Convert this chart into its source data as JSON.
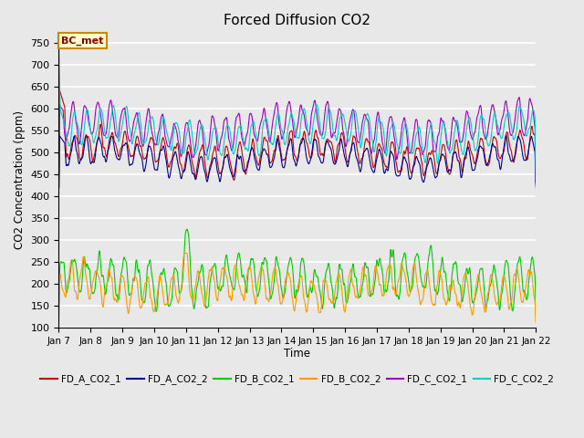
{
  "title": "Forced Diffusion CO2",
  "ylabel": "CO2 Concentration (ppm)",
  "xlabel": "Time",
  "ylim": [
    100,
    775
  ],
  "yticks": [
    100,
    150,
    200,
    250,
    300,
    350,
    400,
    450,
    500,
    550,
    600,
    650,
    700,
    750
  ],
  "plot_bg_color": "#e8e8e8",
  "grid_color": "white",
  "series": [
    {
      "label": "FD_A_CO2_1",
      "color": "#cc0000"
    },
    {
      "label": "FD_A_CO2_2",
      "color": "#000099"
    },
    {
      "label": "FD_B_CO2_1",
      "color": "#00cc00"
    },
    {
      "label": "FD_B_CO2_2",
      "color": "#ff9900"
    },
    {
      "label": "FD_C_CO2_1",
      "color": "#9900cc"
    },
    {
      "label": "FD_C_CO2_2",
      "color": "#00cccc"
    }
  ],
  "annotation": {
    "text": "BC_met",
    "facecolor": "#ffffcc",
    "edgecolor": "#cc8800",
    "textcolor": "#880000"
  },
  "n_points": 1440,
  "x_start": 7.0,
  "x_end": 22.0,
  "xtick_labels": [
    "Jan 7",
    "Jan 8",
    "Jan 9",
    "Jan 10",
    "Jan 11",
    "Jan 12",
    "Jan 13",
    "Jan 14",
    "Jan 15",
    "Jan 16",
    "Jan 17",
    "Jan 18",
    "Jan 19",
    "Jan 20",
    "Jan 21",
    "Jan 22"
  ],
  "xtick_positions": [
    7,
    8,
    9,
    10,
    11,
    12,
    13,
    14,
    15,
    16,
    17,
    18,
    19,
    20,
    21,
    22
  ]
}
